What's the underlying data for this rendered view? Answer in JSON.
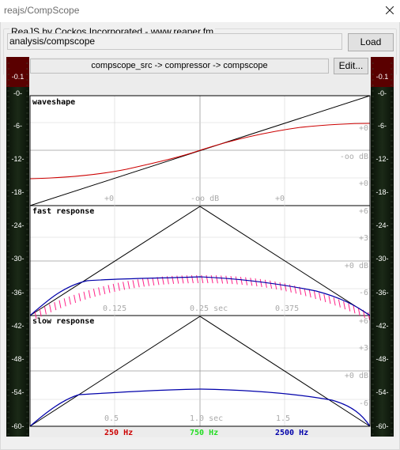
{
  "window": {
    "title": "reajs/CompScope",
    "close_icon": "close-icon"
  },
  "header": {
    "group_label": "ReaJS by Cockos Incorporated - www.reaper.fm",
    "path": "analysis/compscope",
    "load_label": "Load"
  },
  "plugin": {
    "routing": "compscope_src -> compressor -> compscope",
    "edit_label": "Edit..."
  },
  "meters": {
    "left_labels": [
      "-0.1",
      "-0-",
      "-6-",
      "-12-",
      "-18-",
      "-24-",
      "-30-",
      "-36-",
      "-42-",
      "-48-",
      "-54-",
      "-60-"
    ],
    "right_labels": [
      "-0.1",
      "-0-",
      "-6-",
      "-12-",
      "-18-",
      "-24-",
      "-30-",
      "-36-",
      "-42-",
      "-48-",
      "-54-",
      "-60-"
    ],
    "peak_color": "#6b0000",
    "meter_color": "#0f1a0d"
  },
  "panels": {
    "waveshape": {
      "title": "waveshape",
      "right_labels": [
        "+0",
        "-oo dB",
        "+0"
      ],
      "bottom_labels": [
        "+0",
        "-oo dB",
        "+0"
      ]
    },
    "fast": {
      "title": "fast response",
      "right_labels": [
        "+6",
        "+3",
        "+0 dB",
        "-6"
      ],
      "bottom_labels": [
        "0.125",
        "0.25 sec",
        "0.375"
      ]
    },
    "slow": {
      "title": "slow response",
      "right_labels": [
        "+6",
        "+3",
        "+0 dB",
        "-6"
      ],
      "bottom_labels": [
        "0.5",
        "1.0 sec",
        "1.5"
      ]
    }
  },
  "legend": [
    {
      "label": "250 Hz",
      "color": "#cc0000"
    },
    {
      "label": "750 Hz",
      "color": "#22dd22"
    },
    {
      "label": "2500 Hz",
      "color": "#0000aa"
    }
  ]
}
